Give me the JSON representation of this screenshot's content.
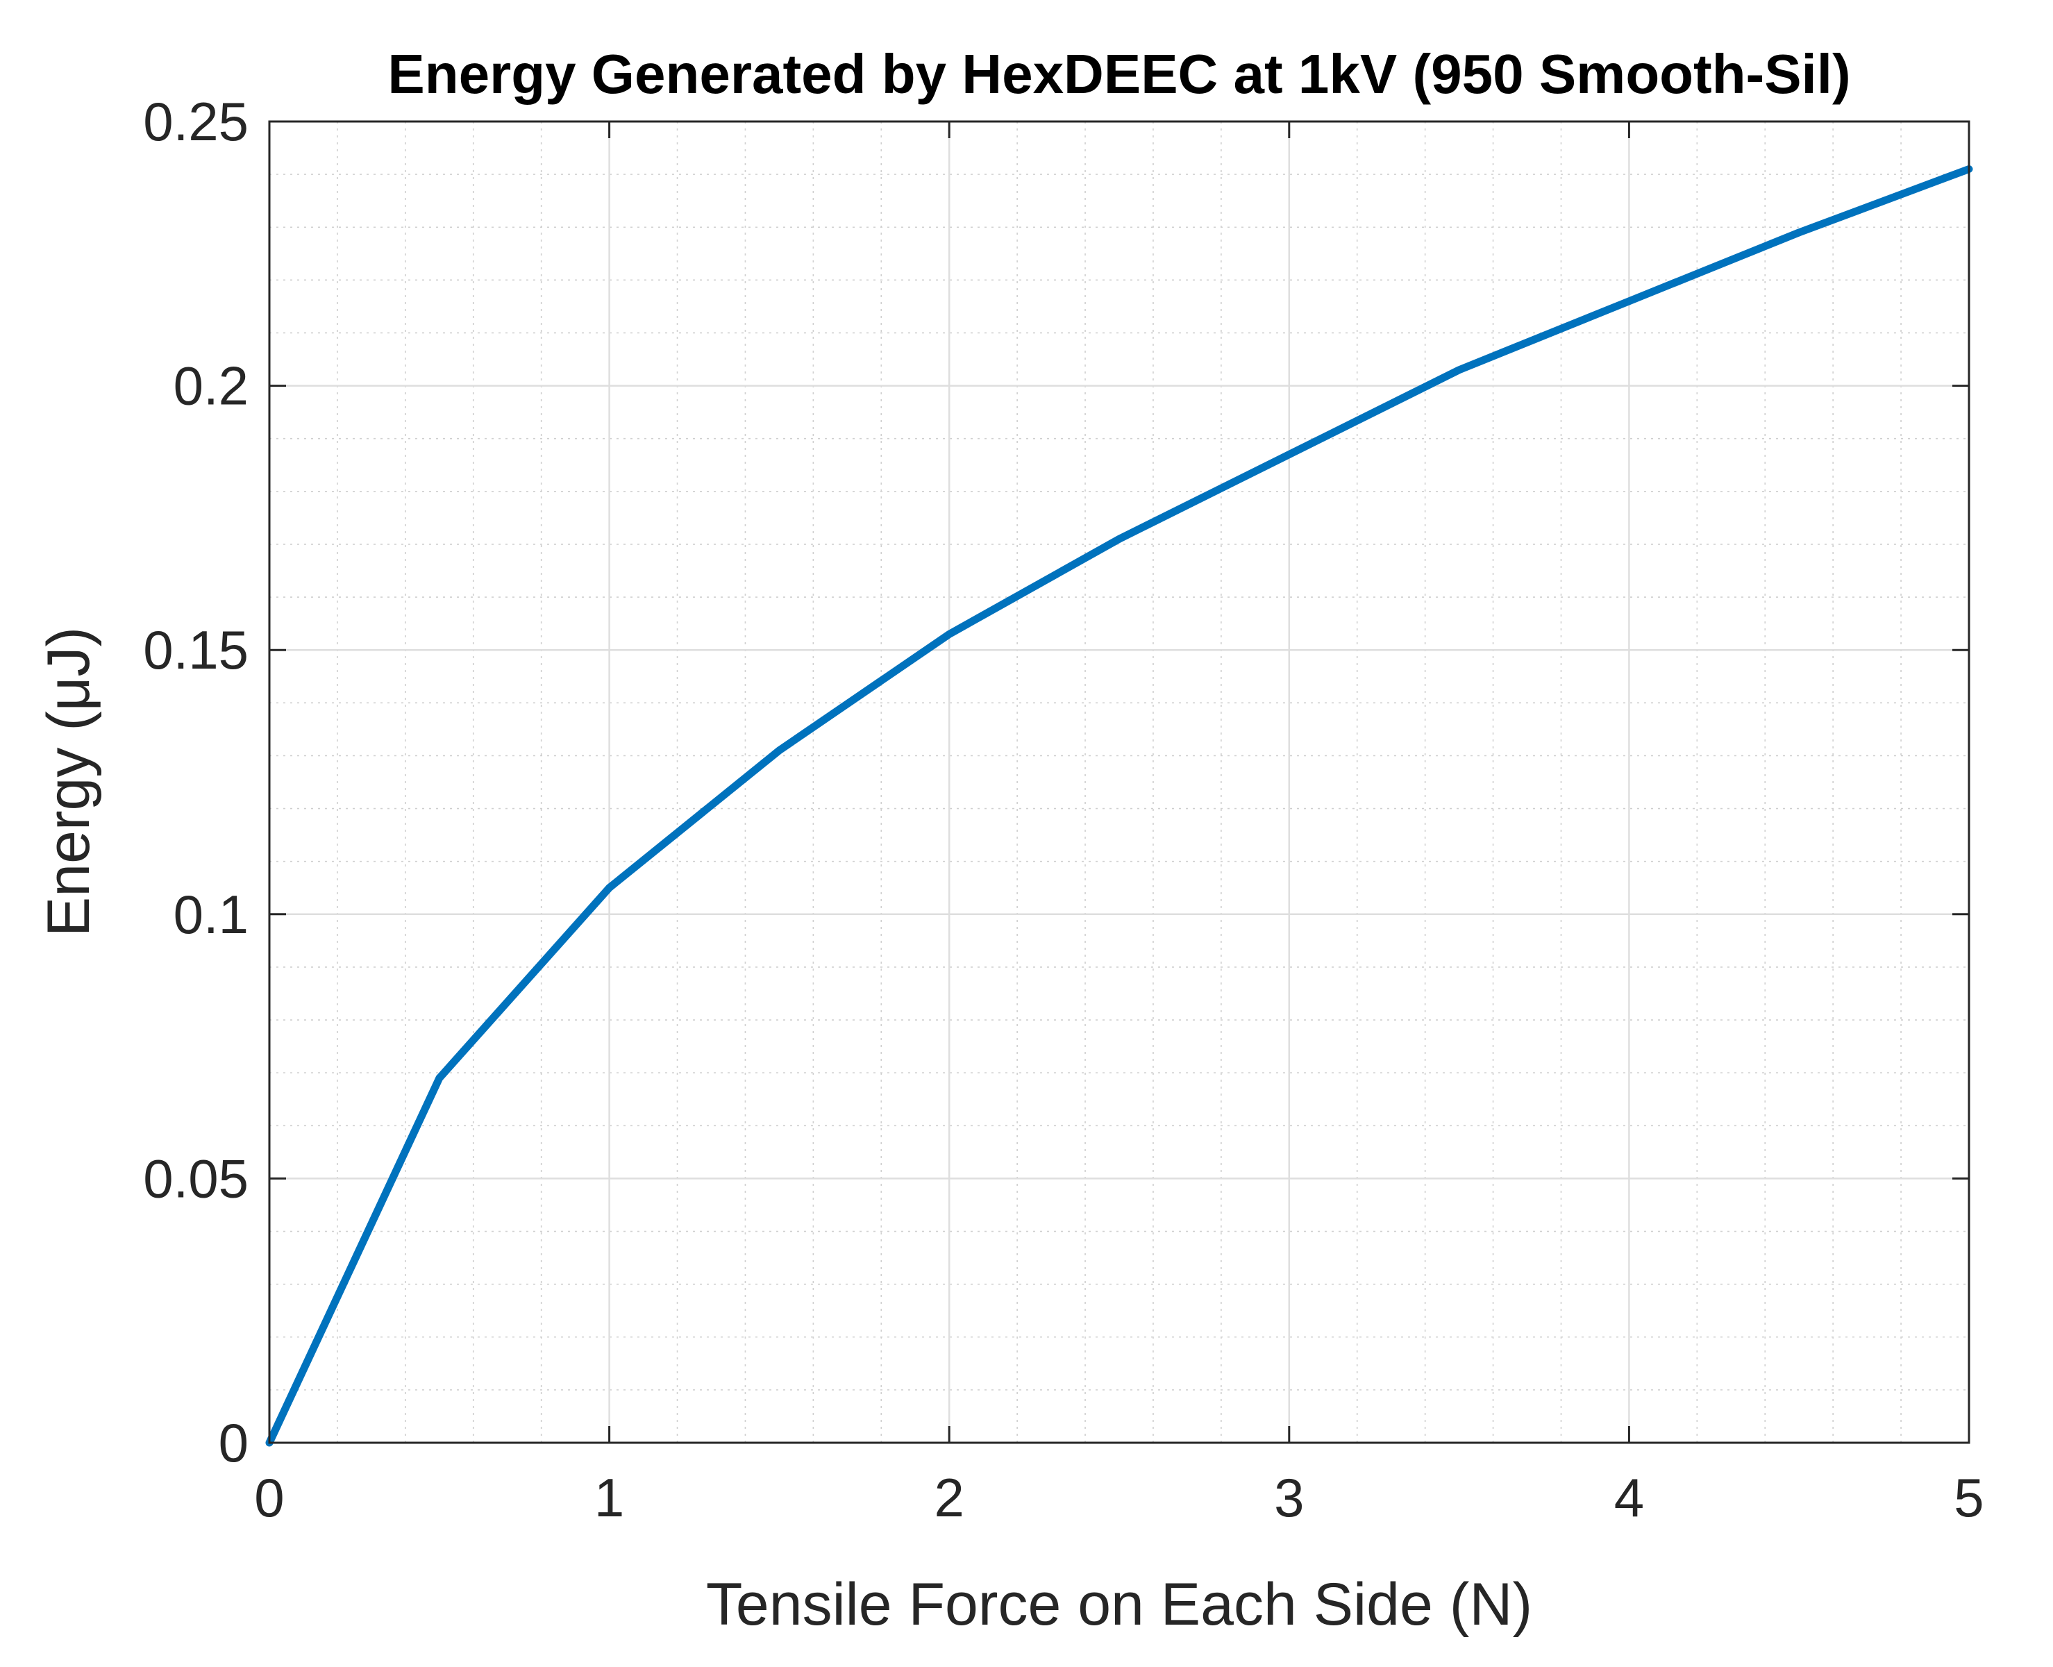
{
  "chart_data": {
    "type": "line",
    "title": "Energy Generated by HexDEEC at 1kV (950 Smooth-Sil)",
    "xlabel": "Tensile Force on Each Side (N)",
    "ylabel": "Energy (μJ)",
    "xlim": [
      0,
      5
    ],
    "ylim": [
      0,
      0.25
    ],
    "xticks": [
      0,
      1,
      2,
      3,
      4,
      5
    ],
    "xtick_labels": [
      "0",
      "1",
      "2",
      "3",
      "4",
      "5"
    ],
    "yticks": [
      0,
      0.05,
      0.1,
      0.15,
      0.2,
      0.25
    ],
    "ytick_labels": [
      "0",
      "0.05",
      "0.1",
      "0.15",
      "0.2",
      "0.25"
    ],
    "x_minor_step": 0.2,
    "y_minor_step": 0.01,
    "grid": true,
    "minor_grid": true,
    "series": [
      {
        "name": "Energy",
        "color": "#0072BD",
        "x": [
          0,
          0.5,
          1.0,
          1.5,
          2.0,
          2.5,
          3.0,
          3.5,
          4.0,
          4.5,
          5.0
        ],
        "y": [
          0,
          0.069,
          0.105,
          0.131,
          0.153,
          0.171,
          0.187,
          0.203,
          0.216,
          0.229,
          0.241
        ]
      }
    ]
  }
}
